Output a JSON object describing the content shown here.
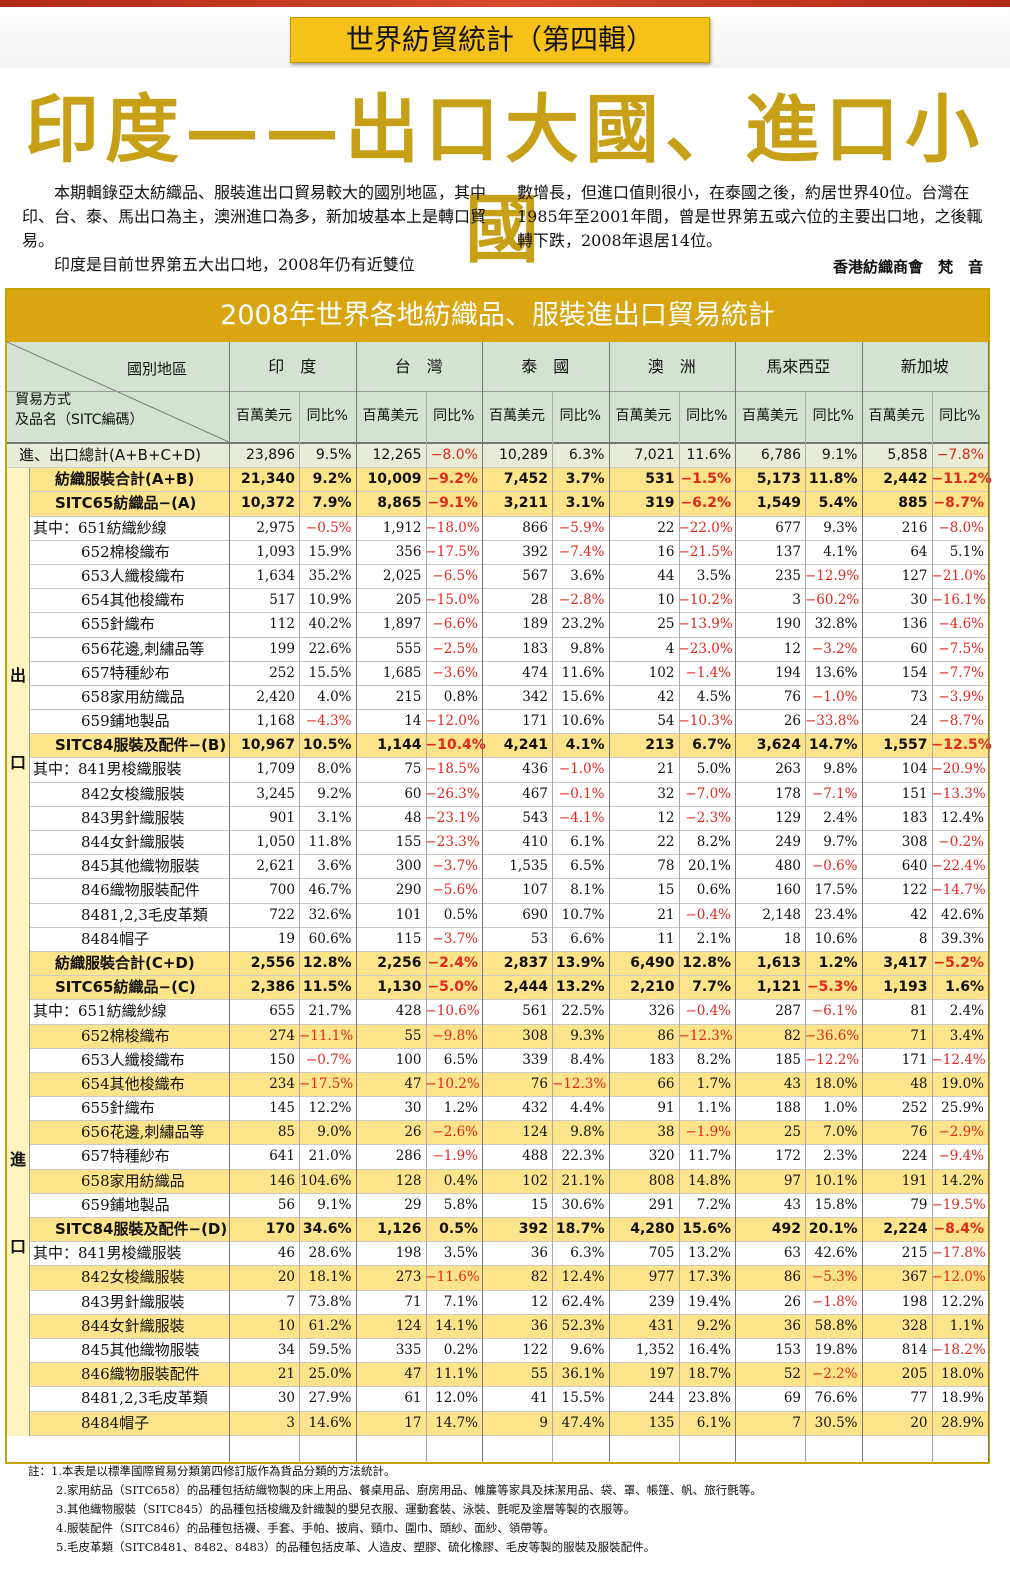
{
  "series_title": "世界紡貿統計（第四輯）",
  "headline": "印度——出口大國、進口小國",
  "intro": {
    "p1": "本期輯錄亞太紡織品、服裝進出口貿易較大的國別地區，其中印、台、泰、馬出口為主，澳洲進口為多，新加坡基本上是轉口貿易。",
    "p2": "印度是目前世界第五大出口地，2008年仍有近雙位",
    "p3": "數增長，但進口值則很小，在泰國之後，約居世界40位。台灣在1985年至2001年間，曾是世界第五或六位的主要出口地，之後輒轉下跌，2008年退居14位。",
    "author": "香港紡織商會　梵　音"
  },
  "table": {
    "title": "2008年世界各地紡織品、服裝進出口貿易統計",
    "corner_top": "國別地區",
    "corner_bottom1": "貿易方式",
    "corner_bottom2": "及品名（SITC編碼）",
    "countries": [
      "印　度",
      "台　灣",
      "泰　國",
      "澳　洲",
      "馬來西亞",
      "新加坡"
    ],
    "unit": "百萬美元",
    "yoy": "同比%",
    "side_export_1": "出",
    "side_export_2": "口",
    "side_import_1": "進",
    "side_import_2": "口",
    "rows": [
      {
        "label": "進、出口總計(A+B+C+D)",
        "type": "total",
        "cells": [
          "23,896",
          "9.5%",
          "12,265",
          "−8.0%",
          "10,289",
          "6.3%",
          "7,021",
          "11.6%",
          "6,786",
          "9.1%",
          "5,858",
          "−7.8%"
        ]
      },
      {
        "label": "紡織服裝合計(A+B)",
        "type": "hdr yel",
        "cells": [
          "21,340",
          "9.2%",
          "10,009",
          "−9.2%",
          "7,452",
          "3.7%",
          "531",
          "−1.5%",
          "5,173",
          "11.8%",
          "2,442",
          "−11.2%"
        ]
      },
      {
        "label": "SITC65紡織品−(A)",
        "type": "hdr yel",
        "cells": [
          "10,372",
          "7.9%",
          "8,865",
          "−9.1%",
          "3,211",
          "3.1%",
          "319",
          "−6.2%",
          "1,549",
          "5.4%",
          "885",
          "−8.7%"
        ]
      },
      {
        "label": "其中：651紡織紗線",
        "type": "first",
        "cells": [
          "2,975",
          "−0.5%",
          "1,912",
          "−18.0%",
          "866",
          "−5.9%",
          "22",
          "−22.0%",
          "677",
          "9.3%",
          "216",
          "−8.0%"
        ]
      },
      {
        "label": "652棉梭織布",
        "type": "item",
        "cells": [
          "1,093",
          "15.9%",
          "356",
          "−17.5%",
          "392",
          "−7.4%",
          "16",
          "−21.5%",
          "137",
          "4.1%",
          "64",
          "5.1%"
        ]
      },
      {
        "label": "653人纖梭織布",
        "type": "item",
        "cells": [
          "1,634",
          "35.2%",
          "2,025",
          "−6.5%",
          "567",
          "3.6%",
          "44",
          "3.5%",
          "235",
          "−12.9%",
          "127",
          "−21.0%"
        ]
      },
      {
        "label": "654其他梭織布",
        "type": "item",
        "cells": [
          "517",
          "10.9%",
          "205",
          "−15.0%",
          "28",
          "−2.8%",
          "10",
          "−10.2%",
          "3",
          "−60.2%",
          "30",
          "−16.1%"
        ]
      },
      {
        "label": "655針織布",
        "type": "item",
        "cells": [
          "112",
          "40.2%",
          "1,897",
          "−6.6%",
          "189",
          "23.2%",
          "25",
          "−13.9%",
          "190",
          "32.8%",
          "136",
          "−4.6%"
        ]
      },
      {
        "label": "656花邊,刺繡品等",
        "type": "item",
        "cells": [
          "199",
          "22.6%",
          "555",
          "−2.5%",
          "183",
          "9.8%",
          "4",
          "−23.0%",
          "12",
          "−3.2%",
          "60",
          "−7.5%"
        ]
      },
      {
        "label": "657特種紗布",
        "type": "item",
        "cells": [
          "252",
          "15.5%",
          "1,685",
          "−3.6%",
          "474",
          "11.6%",
          "102",
          "−1.4%",
          "194",
          "13.6%",
          "154",
          "−7.7%"
        ]
      },
      {
        "label": "658家用紡織品",
        "type": "item",
        "cells": [
          "2,420",
          "4.0%",
          "215",
          "0.8%",
          "342",
          "15.6%",
          "42",
          "4.5%",
          "76",
          "−1.0%",
          "73",
          "−3.9%"
        ]
      },
      {
        "label": "659鋪地製品",
        "type": "item",
        "cells": [
          "1,168",
          "−4.3%",
          "14",
          "−12.0%",
          "171",
          "10.6%",
          "54",
          "−10.3%",
          "26",
          "−33.8%",
          "24",
          "−8.7%"
        ]
      },
      {
        "label": "SITC84服裝及配件−(B)",
        "type": "hdr yel",
        "cells": [
          "10,967",
          "10.5%",
          "1,144",
          "−10.4%",
          "4,241",
          "4.1%",
          "213",
          "6.7%",
          "3,624",
          "14.7%",
          "1,557",
          "−12.5%"
        ]
      },
      {
        "label": "其中：841男梭織服裝",
        "type": "first",
        "cells": [
          "1,709",
          "8.0%",
          "75",
          "−18.5%",
          "436",
          "−1.0%",
          "21",
          "5.0%",
          "263",
          "9.8%",
          "104",
          "−20.9%"
        ]
      },
      {
        "label": "842女梭織服裝",
        "type": "item",
        "cells": [
          "3,245",
          "9.2%",
          "60",
          "−26.3%",
          "467",
          "−0.1%",
          "32",
          "−7.0%",
          "178",
          "−7.1%",
          "151",
          "−13.3%"
        ]
      },
      {
        "label": "843男針織服裝",
        "type": "item",
        "cells": [
          "901",
          "3.1%",
          "48",
          "−23.1%",
          "543",
          "−4.1%",
          "12",
          "−2.3%",
          "129",
          "2.4%",
          "183",
          "12.4%"
        ]
      },
      {
        "label": "844女針織服裝",
        "type": "item",
        "cells": [
          "1,050",
          "11.8%",
          "155",
          "−23.3%",
          "410",
          "6.1%",
          "22",
          "8.2%",
          "249",
          "9.7%",
          "308",
          "−0.2%"
        ]
      },
      {
        "label": "845其他織物服裝",
        "type": "item",
        "cells": [
          "2,621",
          "3.6%",
          "300",
          "−3.7%",
          "1,535",
          "6.5%",
          "78",
          "20.1%",
          "480",
          "−0.6%",
          "640",
          "−22.4%"
        ]
      },
      {
        "label": "846織物服裝配件",
        "type": "item",
        "cells": [
          "700",
          "46.7%",
          "290",
          "−5.6%",
          "107",
          "8.1%",
          "15",
          "0.6%",
          "160",
          "17.5%",
          "122",
          "−14.7%"
        ]
      },
      {
        "label": "8481,2,3毛皮革類",
        "type": "item",
        "cells": [
          "722",
          "32.6%",
          "101",
          "0.5%",
          "690",
          "10.7%",
          "21",
          "−0.4%",
          "2,148",
          "23.4%",
          "42",
          "42.6%"
        ]
      },
      {
        "label": "8484帽子",
        "type": "item",
        "cells": [
          "19",
          "60.6%",
          "115",
          "−3.7%",
          "53",
          "6.6%",
          "11",
          "2.1%",
          "18",
          "10.6%",
          "8",
          "39.3%"
        ]
      },
      {
        "label": "紡織服裝合計(C+D)",
        "type": "hdr yel",
        "cells": [
          "2,556",
          "12.8%",
          "2,256",
          "−2.4%",
          "2,837",
          "13.9%",
          "6,490",
          "12.8%",
          "1,613",
          "1.2%",
          "3,417",
          "−5.2%"
        ]
      },
      {
        "label": "SITC65紡織品−(C)",
        "type": "hdr yel",
        "cells": [
          "2,386",
          "11.5%",
          "1,130",
          "−5.0%",
          "2,444",
          "13.2%",
          "2,210",
          "7.7%",
          "1,121",
          "−5.3%",
          "1,193",
          "1.6%"
        ]
      },
      {
        "label": "其中：651紡織紗線",
        "type": "first",
        "cells": [
          "655",
          "21.7%",
          "428",
          "−10.6%",
          "561",
          "22.5%",
          "326",
          "−0.4%",
          "287",
          "−6.1%",
          "81",
          "2.4%"
        ]
      },
      {
        "label": "652棉梭織布",
        "type": "item yel",
        "cells": [
          "274",
          "−11.1%",
          "55",
          "−9.8%",
          "308",
          "9.3%",
          "86",
          "−12.3%",
          "82",
          "−36.6%",
          "71",
          "3.4%"
        ]
      },
      {
        "label": "653人纖梭織布",
        "type": "item",
        "cells": [
          "150",
          "−0.7%",
          "100",
          "6.5%",
          "339",
          "8.4%",
          "183",
          "8.2%",
          "185",
          "−12.2%",
          "171",
          "−12.4%"
        ]
      },
      {
        "label": "654其他梭織布",
        "type": "item yel",
        "cells": [
          "234",
          "−17.5%",
          "47",
          "−10.2%",
          "76",
          "−12.3%",
          "66",
          "1.7%",
          "43",
          "18.0%",
          "48",
          "19.0%"
        ]
      },
      {
        "label": "655針織布",
        "type": "item",
        "cells": [
          "145",
          "12.2%",
          "30",
          "1.2%",
          "432",
          "4.4%",
          "91",
          "1.1%",
          "188",
          "1.0%",
          "252",
          "25.9%"
        ]
      },
      {
        "label": "656花邊,刺繡品等",
        "type": "item yel",
        "cells": [
          "85",
          "9.0%",
          "26",
          "−2.6%",
          "124",
          "9.8%",
          "38",
          "−1.9%",
          "25",
          "7.0%",
          "76",
          "−2.9%"
        ]
      },
      {
        "label": "657特種紗布",
        "type": "item",
        "cells": [
          "641",
          "21.0%",
          "286",
          "−1.9%",
          "488",
          "22.3%",
          "320",
          "11.7%",
          "172",
          "2.3%",
          "224",
          "−9.4%"
        ]
      },
      {
        "label": "658家用紡織品",
        "type": "item yel",
        "cells": [
          "146",
          "104.6%",
          "128",
          "0.4%",
          "102",
          "21.1%",
          "808",
          "14.8%",
          "97",
          "10.1%",
          "191",
          "14.2%"
        ]
      },
      {
        "label": "659鋪地製品",
        "type": "item",
        "cells": [
          "56",
          "9.1%",
          "29",
          "5.8%",
          "15",
          "30.6%",
          "291",
          "7.2%",
          "43",
          "15.8%",
          "79",
          "−19.5%"
        ]
      },
      {
        "label": "SITC84服裝及配件−(D)",
        "type": "hdr yel",
        "cells": [
          "170",
          "34.6%",
          "1,126",
          "0.5%",
          "392",
          "18.7%",
          "4,280",
          "15.6%",
          "492",
          "20.1%",
          "2,224",
          "−8.4%"
        ]
      },
      {
        "label": "其中：841男梭織服裝",
        "type": "first",
        "cells": [
          "46",
          "28.6%",
          "198",
          "3.5%",
          "36",
          "6.3%",
          "705",
          "13.2%",
          "63",
          "42.6%",
          "215",
          "−17.8%"
        ]
      },
      {
        "label": "842女梭織服裝",
        "type": "item yel",
        "cells": [
          "20",
          "18.1%",
          "273",
          "−11.6%",
          "82",
          "12.4%",
          "977",
          "17.3%",
          "86",
          "−5.3%",
          "367",
          "−12.0%"
        ]
      },
      {
        "label": "843男針織服裝",
        "type": "item",
        "cells": [
          "7",
          "73.8%",
          "71",
          "7.1%",
          "12",
          "62.4%",
          "239",
          "19.4%",
          "26",
          "−1.8%",
          "198",
          "12.2%"
        ]
      },
      {
        "label": "844女針織服裝",
        "type": "item yel",
        "cells": [
          "10",
          "61.2%",
          "124",
          "14.1%",
          "36",
          "52.3%",
          "431",
          "9.2%",
          "36",
          "58.8%",
          "328",
          "1.1%"
        ]
      },
      {
        "label": "845其他織物服裝",
        "type": "item",
        "cells": [
          "34",
          "59.5%",
          "335",
          "0.2%",
          "122",
          "9.6%",
          "1,352",
          "16.4%",
          "153",
          "19.8%",
          "814",
          "−18.2%"
        ]
      },
      {
        "label": "846織物服裝配件",
        "type": "item yel",
        "cells": [
          "21",
          "25.0%",
          "47",
          "11.1%",
          "55",
          "36.1%",
          "197",
          "18.7%",
          "52",
          "−2.2%",
          "205",
          "18.0%"
        ]
      },
      {
        "label": "8481,2,3毛皮革類",
        "type": "item",
        "cells": [
          "30",
          "27.9%",
          "61",
          "12.0%",
          "41",
          "15.5%",
          "244",
          "23.8%",
          "69",
          "76.6%",
          "77",
          "18.9%"
        ]
      },
      {
        "label": "8484帽子",
        "type": "item yel",
        "cells": [
          "3",
          "14.6%",
          "17",
          "14.7%",
          "9",
          "47.4%",
          "135",
          "6.1%",
          "7",
          "30.5%",
          "20",
          "28.9%"
        ]
      }
    ]
  },
  "notes": [
    "註：1.本表是以標準國際貿易分類第四修訂版作為貨品分類的方法統計。",
    "2.家用紡品（SITC658）的品種包括紡織物製的床上用品、餐桌用品、廚房用品、帷簾等家具及抹潔用品、袋、罩、帳篷、帆、旅行氈等。",
    "3.其他織物服裝（SITC845）的品種包括梭織及針織製的嬰兒衣服、運動套裝、泳裝、氈呢及塗層等製的衣服等。",
    "4.服裝配件（SITC846）的品種包括襪、手套、手帕、披肩、頸巾、圍巾、頭紗、面紗、領帶等。",
    "5.毛皮革類（SITC8481、8482、8483）的品種包括皮革、人造皮、塑膠、硫化橡膠、毛皮等製的服裝及服裝配件。"
  ]
}
